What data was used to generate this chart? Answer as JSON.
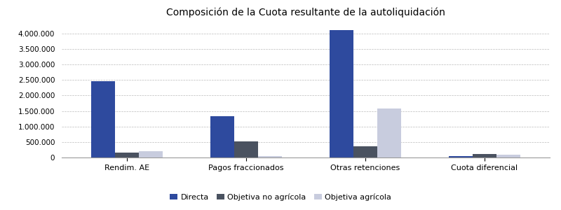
{
  "title": "Composición de la Cuota resultante de la autoliquidación",
  "categories": [
    "Rendim. AE",
    "Pagos fraccionados",
    "Otras retenciones",
    "Cuota diferencial"
  ],
  "series": {
    "Directa": [
      2450000,
      1340000,
      4100000,
      50000
    ],
    "Objetiva no agrícola": [
      160000,
      530000,
      350000,
      120000
    ],
    "Objetiva agrícola": [
      210000,
      35000,
      1580000,
      80000
    ]
  },
  "colors": {
    "Directa": "#2E4A9E",
    "Objetiva no agrícola": "#4A5260",
    "Objetiva agrícola": "#C8CCDE"
  },
  "ylim": [
    0,
    4400000
  ],
  "yticks": [
    0,
    500000,
    1000000,
    1500000,
    2000000,
    2500000,
    3000000,
    3500000,
    4000000
  ],
  "bar_width": 0.2,
  "grid_color": "#BBBBBB",
  "background_color": "#FFFFFF",
  "title_fontsize": 10
}
